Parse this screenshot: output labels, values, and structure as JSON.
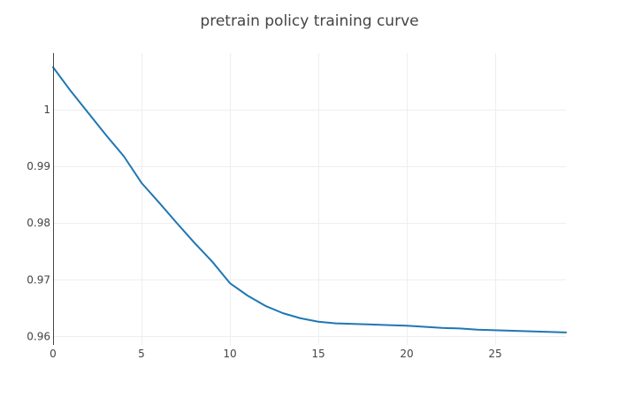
{
  "chart_data": {
    "type": "line",
    "title": "pretrain policy training curve",
    "xlabel": "",
    "ylabel": "",
    "xlim": [
      0,
      29
    ],
    "ylim": [
      0.9585,
      1.01
    ],
    "grid": true,
    "x_ticks": [
      0,
      5,
      10,
      15,
      20,
      25
    ],
    "x_tick_labels": [
      "0",
      "5",
      "10",
      "15",
      "20",
      "25"
    ],
    "y_ticks": [
      0.96,
      0.97,
      0.98,
      0.99,
      1.0
    ],
    "y_tick_labels": [
      "0.96",
      "0.97",
      "0.98",
      "0.99",
      "1"
    ],
    "series": [
      {
        "color": "#1f77b4",
        "x": [
          0,
          1,
          2,
          3,
          4,
          5,
          6,
          7,
          8,
          9,
          10,
          11,
          12,
          13,
          14,
          15,
          16,
          17,
          18,
          19,
          20,
          21,
          22,
          23,
          24,
          25,
          26,
          27,
          28,
          29
        ],
        "y": [
          1.0075,
          1.0033,
          0.9994,
          0.9955,
          0.9918,
          0.9871,
          0.9836,
          0.98,
          0.9765,
          0.9732,
          0.9694,
          0.9672,
          0.9654,
          0.9641,
          0.9632,
          0.9626,
          0.9623,
          0.9622,
          0.9621,
          0.962,
          0.9619,
          0.9617,
          0.9615,
          0.9614,
          0.9612,
          0.9611,
          0.961,
          0.9609,
          0.9608,
          0.9607
        ]
      }
    ]
  }
}
